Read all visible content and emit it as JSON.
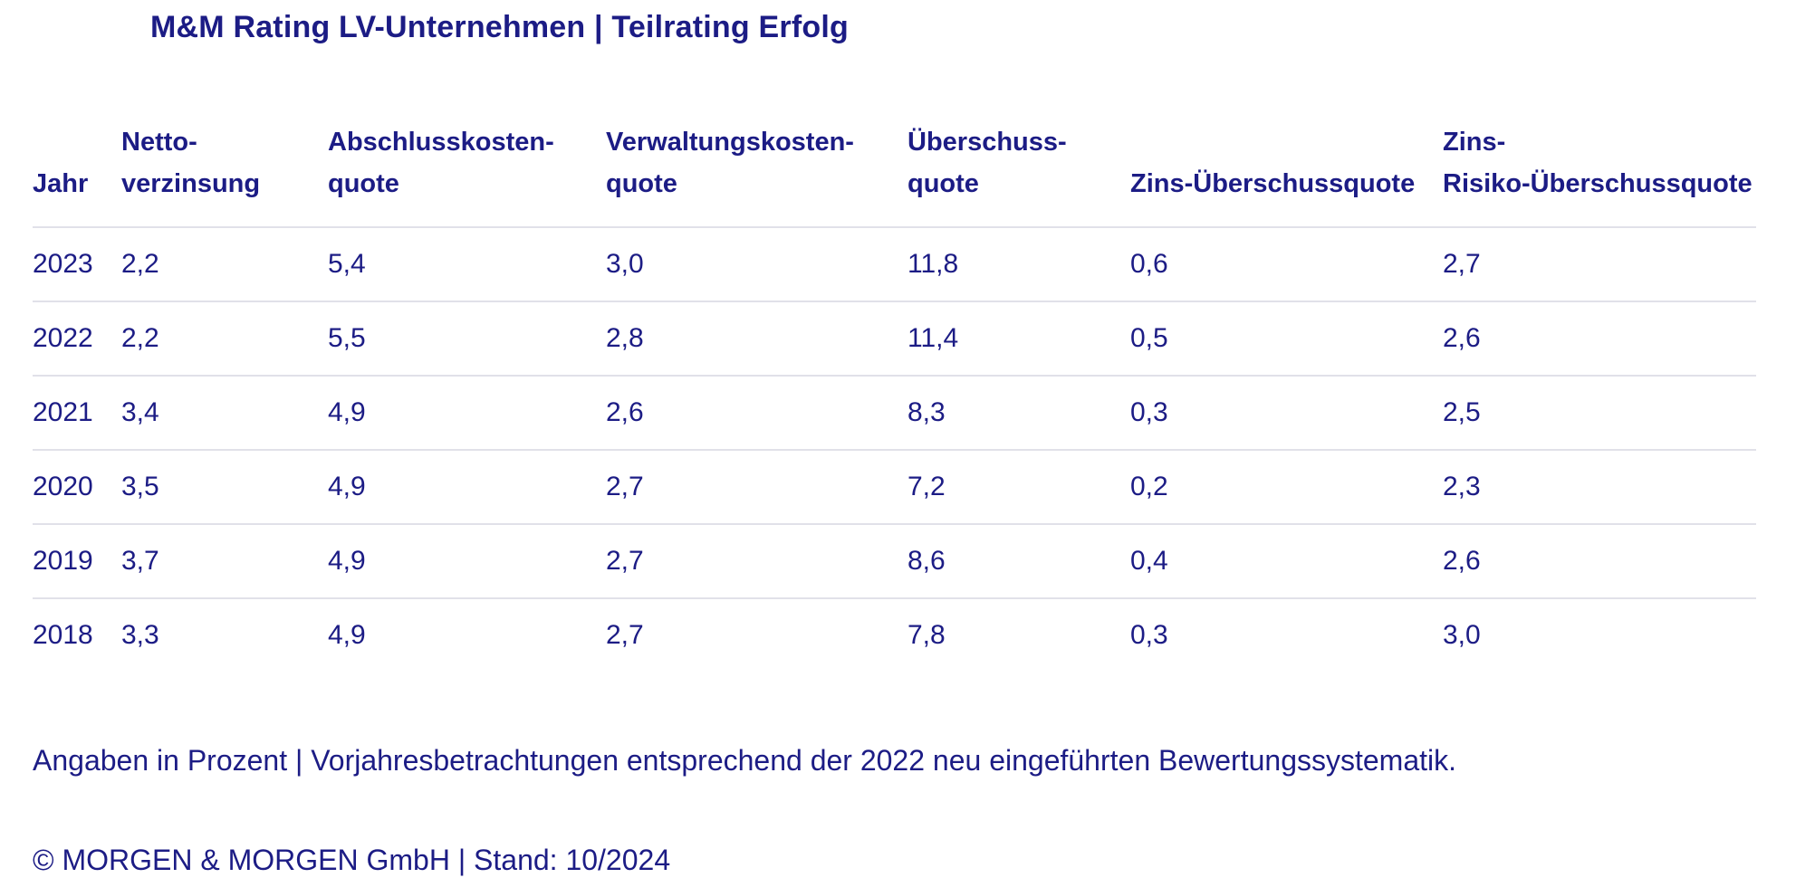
{
  "page_title": "M&M Rating LV-Unternehmen | Teilrating Erfolg",
  "chart_data": {
    "type": "table",
    "title": "M&M Rating LV-Unternehmen | Teilrating Erfolg",
    "columns": [
      {
        "line1": "",
        "line2": "Jahr"
      },
      {
        "line1": "Netto-",
        "line2": "verzinsung"
      },
      {
        "line1": "Abschlusskosten-",
        "line2": "quote"
      },
      {
        "line1": "Verwaltungskosten-",
        "line2": "quote"
      },
      {
        "line1": "Überschuss-",
        "line2": "quote"
      },
      {
        "line1": "",
        "line2": "Zins-Überschussquote"
      },
      {
        "line1": "Zins-",
        "line2": "Risiko-Überschussquote"
      }
    ],
    "rows": [
      [
        "2023",
        "2,2",
        "5,4",
        "3,0",
        "11,8",
        "0,6",
        "2,7"
      ],
      [
        "2022",
        "2,2",
        "5,5",
        "2,8",
        "11,4",
        "0,5",
        "2,6"
      ],
      [
        "2021",
        "3,4",
        "4,9",
        "2,6",
        "8,3",
        "0,3",
        "2,5"
      ],
      [
        "2020",
        "3,5",
        "4,9",
        "2,7",
        "7,2",
        "0,2",
        "2,3"
      ],
      [
        "2019",
        "3,7",
        "4,9",
        "2,7",
        "8,6",
        "0,4",
        "2,6"
      ],
      [
        "2018",
        "3,3",
        "4,9",
        "2,7",
        "7,8",
        "0,3",
        "3,0"
      ]
    ]
  },
  "footnote": "Angaben in Prozent | Vorjahresbetrachtungen entsprechend der 2022 neu eingeführten Bewertungssystematik.",
  "copyright": "© MORGEN & MORGEN GmbH | Stand: 10/2024",
  "colors": {
    "text_navy": "#1c1c85",
    "separator_gray": "#e1e1e9",
    "background": "#ffffff"
  }
}
